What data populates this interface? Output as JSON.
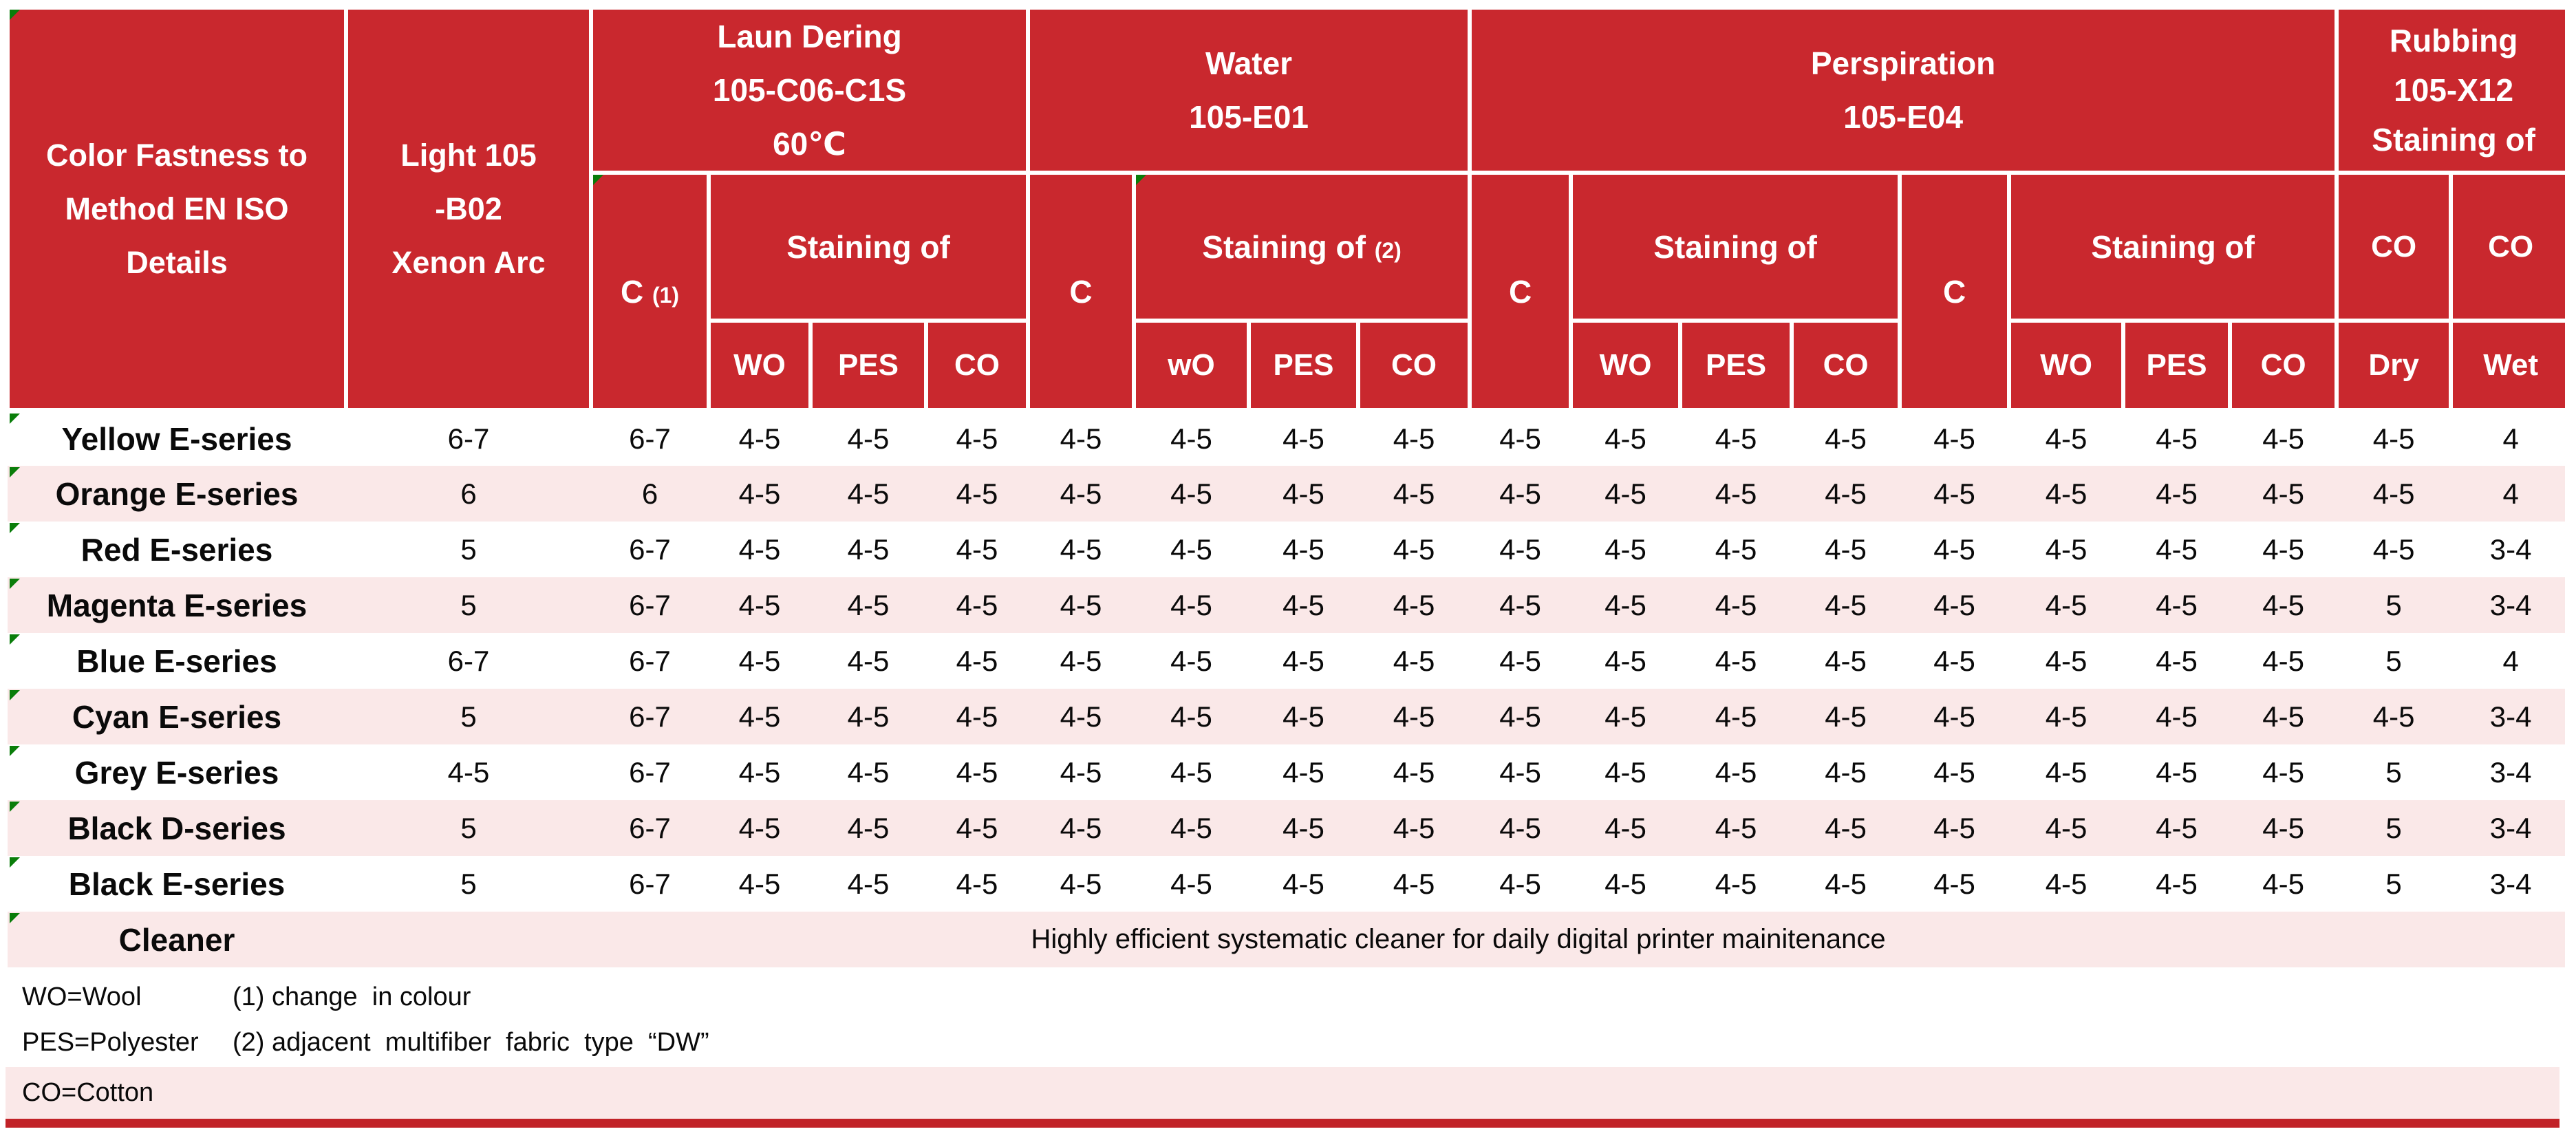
{
  "colors": {
    "header_red": "#C9282E",
    "row_pink": "#FAE8E8",
    "flag_green": "#0A7D0A",
    "bottom_bar_red": "#C12227",
    "text": "#0A0A0A"
  },
  "table": {
    "header": {
      "corner_lines": [
        "Color Fastness to",
        "Method EN ISO",
        "Details"
      ],
      "light_lines": [
        "Light 105",
        "-B02",
        "Xenon Arc"
      ],
      "laundering_lines": [
        "Laun Dering",
        "105-C06-C1S",
        "60℃"
      ],
      "water_lines": [
        "Water",
        "105-E01"
      ],
      "perspiration_lines": [
        "Perspiration",
        "105-E04"
      ],
      "rubbing_lines": [
        "Rubbing",
        "105-X12",
        "Staining of"
      ],
      "c1_main": "C",
      "c1_note": "(1)",
      "staining_laundering": "Staining of",
      "c_water": "C",
      "staining_water": "Staining of",
      "staining_water_note": "(2)",
      "c_persp1": "C",
      "staining_persp1": "Staining of",
      "c_persp2": "C",
      "staining_persp2": "Staining of",
      "rubbing_co_dry": "CO",
      "rubbing_co_wet": "CO",
      "sub_laundering": [
        "WO",
        "PES",
        "CO"
      ],
      "sub_water": [
        "wO",
        "PES",
        "CO"
      ],
      "sub_persp1": [
        "WO",
        "PES",
        "CO"
      ],
      "sub_persp2": [
        "WO",
        "PES",
        "CO"
      ],
      "rub_dry": "Dry",
      "rub_wet": "Wet"
    },
    "rows": [
      {
        "name": "Yellow E-series",
        "values": [
          "6-7",
          "6-7",
          "4-5",
          "4-5",
          "4-5",
          "4-5",
          "4-5",
          "4-5",
          "4-5",
          "4-5",
          "4-5",
          "4-5",
          "4-5",
          "4-5",
          "4-5",
          "4-5",
          "4-5",
          "4-5",
          "4"
        ]
      },
      {
        "name": "Orange E-series",
        "values": [
          "6",
          "6",
          "4-5",
          "4-5",
          "4-5",
          "4-5",
          "4-5",
          "4-5",
          "4-5",
          "4-5",
          "4-5",
          "4-5",
          "4-5",
          "4-5",
          "4-5",
          "4-5",
          "4-5",
          "4-5",
          "4"
        ]
      },
      {
        "name": "Red E-series",
        "values": [
          "5",
          "6-7",
          "4-5",
          "4-5",
          "4-5",
          "4-5",
          "4-5",
          "4-5",
          "4-5",
          "4-5",
          "4-5",
          "4-5",
          "4-5",
          "4-5",
          "4-5",
          "4-5",
          "4-5",
          "4-5",
          "3-4"
        ]
      },
      {
        "name": "Magenta E-series",
        "values": [
          "5",
          "6-7",
          "4-5",
          "4-5",
          "4-5",
          "4-5",
          "4-5",
          "4-5",
          "4-5",
          "4-5",
          "4-5",
          "4-5",
          "4-5",
          "4-5",
          "4-5",
          "4-5",
          "4-5",
          "5",
          "3-4"
        ]
      },
      {
        "name": "Blue E-series",
        "values": [
          "6-7",
          "6-7",
          "4-5",
          "4-5",
          "4-5",
          "4-5",
          "4-5",
          "4-5",
          "4-5",
          "4-5",
          "4-5",
          "4-5",
          "4-5",
          "4-5",
          "4-5",
          "4-5",
          "4-5",
          "5",
          "4"
        ]
      },
      {
        "name": "Cyan E-series",
        "values": [
          "5",
          "6-7",
          "4-5",
          "4-5",
          "4-5",
          "4-5",
          "4-5",
          "4-5",
          "4-5",
          "4-5",
          "4-5",
          "4-5",
          "4-5",
          "4-5",
          "4-5",
          "4-5",
          "4-5",
          "4-5",
          "3-4"
        ]
      },
      {
        "name": "Grey E-series",
        "values": [
          "4-5",
          "6-7",
          "4-5",
          "4-5",
          "4-5",
          "4-5",
          "4-5",
          "4-5",
          "4-5",
          "4-5",
          "4-5",
          "4-5",
          "4-5",
          "4-5",
          "4-5",
          "4-5",
          "4-5",
          "5",
          "3-4"
        ]
      },
      {
        "name": "Black D-series",
        "values": [
          "5",
          "6-7",
          "4-5",
          "4-5",
          "4-5",
          "4-5",
          "4-5",
          "4-5",
          "4-5",
          "4-5",
          "4-5",
          "4-5",
          "4-5",
          "4-5",
          "4-5",
          "4-5",
          "4-5",
          "5",
          "3-4"
        ]
      },
      {
        "name": "Black E-series",
        "values": [
          "5",
          "6-7",
          "4-5",
          "4-5",
          "4-5",
          "4-5",
          "4-5",
          "4-5",
          "4-5",
          "4-5",
          "4-5",
          "4-5",
          "4-5",
          "4-5",
          "4-5",
          "4-5",
          "4-5",
          "5",
          "3-4"
        ]
      }
    ],
    "cleaner_row": {
      "name": "Cleaner",
      "description": "Highly efficient systematic cleaner for daily digital printer mainitenance"
    }
  },
  "footnotes": {
    "wo": "WO=Wool",
    "pes": "PES=Polyester",
    "co": "CO=Cotton",
    "note1": "(1) change  in colour",
    "note2": "(2) adjacent  multifiber  fabric  type  “DW”"
  }
}
